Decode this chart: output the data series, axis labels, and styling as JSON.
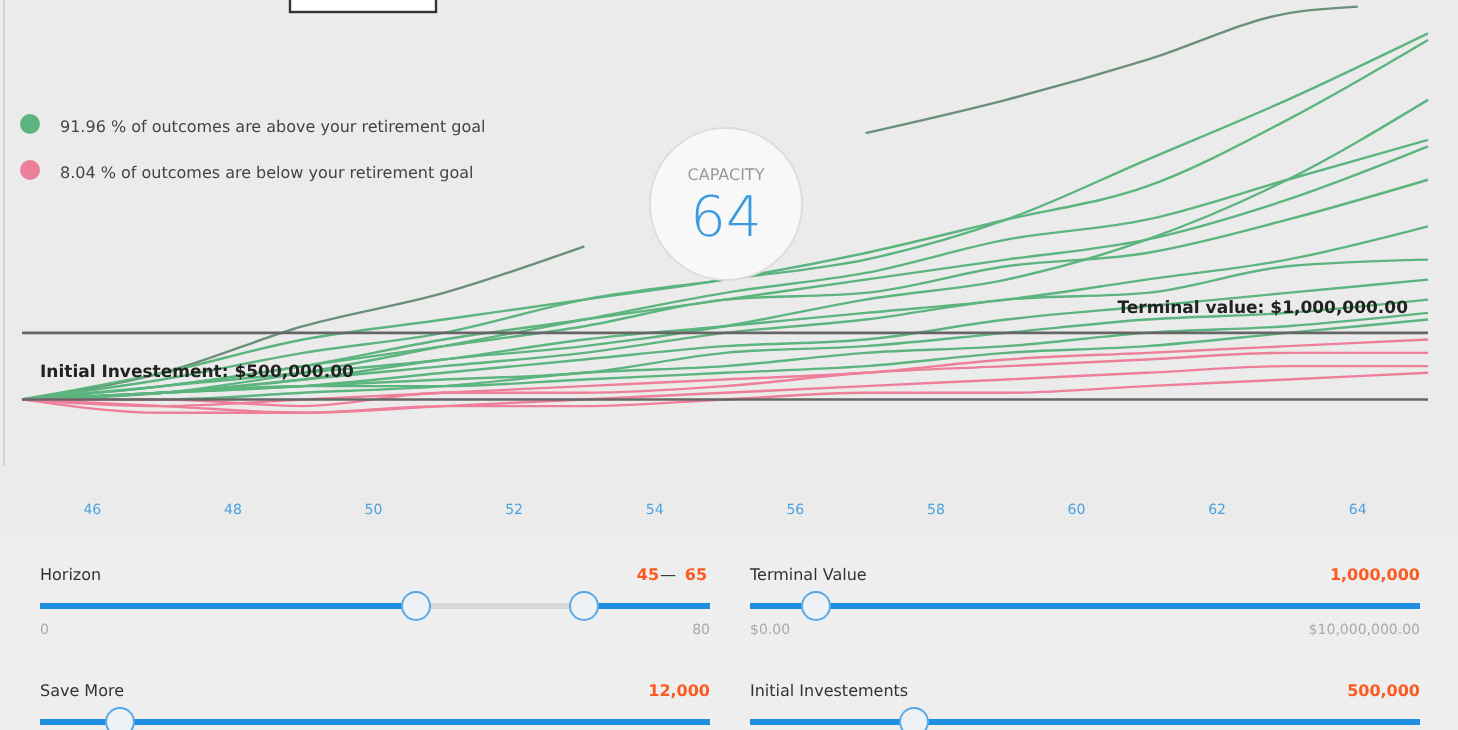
{
  "chart_data": {
    "type": "line",
    "x": [
      45,
      47,
      49,
      51,
      53,
      55,
      57,
      59,
      61,
      63,
      65
    ],
    "xlim": [
      45,
      65
    ],
    "ylim": [
      0,
      3500000
    ],
    "xticks": [
      46,
      48,
      50,
      52,
      54,
      56,
      58,
      60,
      62,
      64
    ],
    "tick_labels": "x",
    "series": [
      {
        "color": "#6b8f78",
        "x": [
          45,
          47,
          49,
          51,
          53,
          55,
          57,
          59,
          61,
          63,
          64
        ],
        "values": [
          500000,
          700000,
          1050000,
          1300000,
          1650000,
          null,
          2500000,
          2750000,
          3050000,
          3400000,
          3450000
        ]
      },
      {
        "color": "#5cb47e",
        "values": [
          500000,
          700000,
          950000,
          1100000,
          1250000,
          1400000,
          1600000,
          1850000,
          2100000,
          2600000,
          3200000
        ]
      },
      {
        "color": "#5cb47e",
        "values": [
          500000,
          650000,
          850000,
          1000000,
          1250000,
          1400000,
          1550000,
          1850000,
          2300000,
          2750000,
          3250000
        ]
      },
      {
        "color": "#5cb47e",
        "values": [
          500000,
          600000,
          750000,
          950000,
          1100000,
          1250000,
          1400000,
          1550000,
          1700000,
          2000000,
          2400000
        ]
      },
      {
        "color": "#5cb47e",
        "values": [
          500000,
          600000,
          750000,
          900000,
          1050000,
          1250000,
          1300000,
          1500000,
          1600000,
          1850000,
          2150000
        ]
      },
      {
        "color": "#5cb47e",
        "values": [
          500000,
          600000,
          700000,
          800000,
          950000,
          1050000,
          1150000,
          1250000,
          1400000,
          1550000,
          1800000
        ]
      },
      {
        "color": "#5cb47e",
        "values": [
          500000,
          550000,
          650000,
          750000,
          850000,
          1000000,
          1100000,
          1250000,
          1300000,
          1500000,
          1550000
        ]
      },
      {
        "color": "#5cb47e",
        "values": [
          500000,
          550000,
          600000,
          700000,
          800000,
          900000,
          950000,
          1100000,
          1200000,
          1300000,
          1400000
        ]
      },
      {
        "color": "#5cb47e",
        "values": [
          500000,
          550000,
          600000,
          650000,
          700000,
          850000,
          900000,
          1000000,
          1100000,
          1150000,
          1250000
        ]
      },
      {
        "color": "#5cb47e",
        "values": [
          500000,
          500000,
          550000,
          600000,
          700000,
          750000,
          850000,
          900000,
          1000000,
          1050000,
          1150000
        ]
      },
      {
        "color": "#5cb47e",
        "values": [
          500000,
          550000,
          600000,
          600000,
          650000,
          700000,
          750000,
          850000,
          900000,
          1000000,
          1100000
        ]
      },
      {
        "color": "#5cb47e",
        "values": [
          500000,
          550000,
          650000,
          800000,
          900000,
          1050000,
          1250000,
          1400000,
          1700000,
          2150000,
          2750000
        ]
      },
      {
        "color": "#5cb47e",
        "values": [
          500000,
          550000,
          700000,
          900000,
          1100000,
          1300000,
          1450000,
          1700000,
          1850000,
          2150000,
          2450000
        ]
      },
      {
        "color": "#ee7f9b",
        "values": [
          500000,
          400000,
          400000,
          450000,
          450000,
          500000,
          550000,
          550000,
          600000,
          650000,
          700000
        ]
      },
      {
        "color": "#ee7f9b",
        "values": [
          500000,
          450000,
          400000,
          450000,
          500000,
          550000,
          600000,
          650000,
          700000,
          750000,
          750000
        ]
      },
      {
        "color": "#ee7f9b",
        "values": [
          500000,
          500000,
          450000,
          550000,
          550000,
          600000,
          700000,
          750000,
          800000,
          850000,
          850000
        ]
      },
      {
        "color": "#ee7f9b",
        "values": [
          500000,
          450000,
          500000,
          550000,
          600000,
          650000,
          700000,
          800000,
          850000,
          900000,
          950000
        ]
      }
    ],
    "ref_lines": [
      {
        "axis": "y",
        "value": 1000000,
        "label": "Terminal value: $1,000,000.00",
        "color": "#666666"
      },
      {
        "axis": "y",
        "value": 500000,
        "label": "Initial Investement: $500,000.00",
        "color": "#666666"
      }
    ],
    "annotations": [
      "91.96 % of outcomes are above your retirement goal",
      "8.04 % of outcomes are below your retirement goal",
      "CAPACITY",
      "64",
      "Horizon",
      "45",
      "—",
      "65",
      "0",
      "80",
      "Terminal Value",
      "1,000,000",
      "$0.00",
      "$10,000,000.00",
      "Save More",
      "12,000",
      "Initial Investements",
      "500,000"
    ]
  }
}
